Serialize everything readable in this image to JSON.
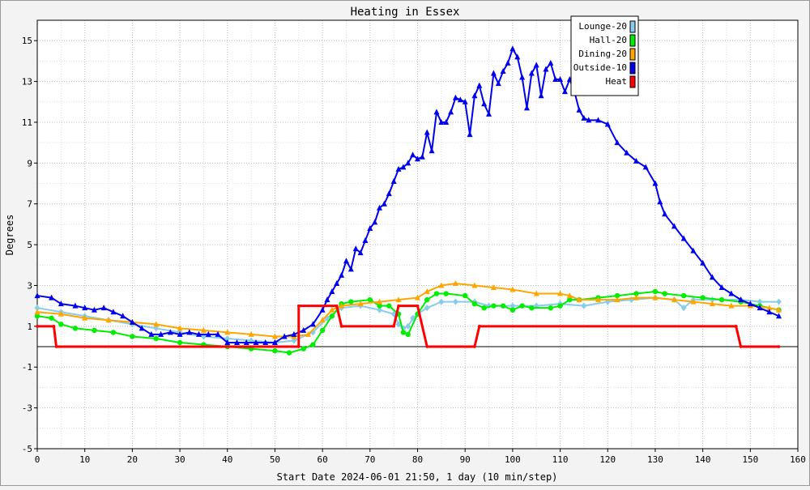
{
  "chart_data": {
    "type": "line",
    "title": "Heating in Essex",
    "xlabel": "Start Date 2024-06-01 21:50, 1 day (10 min/step)",
    "ylabel": "Degrees",
    "xlim": [
      0,
      160
    ],
    "ylim": [
      -5,
      16
    ],
    "x_ticks": [
      0,
      10,
      20,
      30,
      40,
      50,
      60,
      70,
      80,
      90,
      100,
      110,
      120,
      130,
      140,
      150,
      160
    ],
    "y_ticks": [
      -5,
      -3,
      -1,
      1,
      3,
      5,
      7,
      9,
      11,
      13,
      15
    ],
    "grid": true,
    "legend_position": "top-right",
    "series": [
      {
        "name": "Lounge-20",
        "color": "#87cdea",
        "marker": "diamond",
        "points": [
          [
            0,
            1.9
          ],
          [
            5,
            1.7
          ],
          [
            10,
            1.5
          ],
          [
            15,
            1.3
          ],
          [
            20,
            1.1
          ],
          [
            25,
            0.9
          ],
          [
            30,
            0.7
          ],
          [
            35,
            0.5
          ],
          [
            40,
            0.4
          ],
          [
            45,
            0.3
          ],
          [
            50,
            0.2
          ],
          [
            54,
            0.3
          ],
          [
            58,
            0.7
          ],
          [
            61,
            1.4
          ],
          [
            64,
            1.9
          ],
          [
            68,
            2.0
          ],
          [
            72,
            1.8
          ],
          [
            75,
            1.6
          ],
          [
            76,
            1.1
          ],
          [
            77,
            0.9
          ],
          [
            78,
            1.0
          ],
          [
            79,
            1.4
          ],
          [
            80,
            1.6
          ],
          [
            82,
            1.9
          ],
          [
            85,
            2.2
          ],
          [
            88,
            2.2
          ],
          [
            92,
            2.2
          ],
          [
            95,
            2.0
          ],
          [
            100,
            2.0
          ],
          [
            105,
            2.0
          ],
          [
            110,
            2.1
          ],
          [
            115,
            2.0
          ],
          [
            120,
            2.2
          ],
          [
            125,
            2.3
          ],
          [
            130,
            2.4
          ],
          [
            134,
            2.3
          ],
          [
            136,
            1.9
          ],
          [
            138,
            2.3
          ],
          [
            142,
            2.3
          ],
          [
            148,
            2.3
          ],
          [
            152,
            2.2
          ],
          [
            156,
            2.2
          ]
        ]
      },
      {
        "name": "Hall-20",
        "color": "#00ee00",
        "marker": "circle",
        "points": [
          [
            0,
            1.5
          ],
          [
            3,
            1.4
          ],
          [
            5,
            1.1
          ],
          [
            8,
            0.9
          ],
          [
            12,
            0.8
          ],
          [
            16,
            0.7
          ],
          [
            20,
            0.5
          ],
          [
            25,
            0.4
          ],
          [
            30,
            0.2
          ],
          [
            35,
            0.1
          ],
          [
            40,
            0.0
          ],
          [
            45,
            -0.1
          ],
          [
            50,
            -0.2
          ],
          [
            53,
            -0.3
          ],
          [
            56,
            -0.1
          ],
          [
            58,
            0.1
          ],
          [
            60,
            0.8
          ],
          [
            62,
            1.5
          ],
          [
            64,
            2.1
          ],
          [
            66,
            2.2
          ],
          [
            70,
            2.3
          ],
          [
            72,
            2.0
          ],
          [
            74,
            2.0
          ],
          [
            76,
            1.6
          ],
          [
            77,
            0.7
          ],
          [
            78,
            0.6
          ],
          [
            80,
            1.6
          ],
          [
            82,
            2.3
          ],
          [
            84,
            2.6
          ],
          [
            86,
            2.6
          ],
          [
            90,
            2.5
          ],
          [
            92,
            2.1
          ],
          [
            94,
            1.9
          ],
          [
            96,
            2.0
          ],
          [
            98,
            2.0
          ],
          [
            100,
            1.8
          ],
          [
            102,
            2.0
          ],
          [
            104,
            1.9
          ],
          [
            108,
            1.9
          ],
          [
            110,
            2.0
          ],
          [
            112,
            2.3
          ],
          [
            114,
            2.3
          ],
          [
            118,
            2.4
          ],
          [
            122,
            2.5
          ],
          [
            126,
            2.6
          ],
          [
            130,
            2.7
          ],
          [
            132,
            2.6
          ],
          [
            136,
            2.5
          ],
          [
            140,
            2.4
          ],
          [
            144,
            2.3
          ],
          [
            148,
            2.2
          ],
          [
            152,
            2.0
          ],
          [
            156,
            1.8
          ]
        ]
      },
      {
        "name": "Dining-20",
        "color": "#ffa500",
        "marker": "triangle",
        "points": [
          [
            0,
            1.7
          ],
          [
            5,
            1.6
          ],
          [
            10,
            1.4
          ],
          [
            15,
            1.3
          ],
          [
            20,
            1.2
          ],
          [
            25,
            1.1
          ],
          [
            30,
            0.9
          ],
          [
            35,
            0.8
          ],
          [
            40,
            0.7
          ],
          [
            45,
            0.6
          ],
          [
            50,
            0.5
          ],
          [
            54,
            0.5
          ],
          [
            57,
            0.6
          ],
          [
            60,
            1.3
          ],
          [
            62,
            1.8
          ],
          [
            64,
            2.0
          ],
          [
            68,
            2.1
          ],
          [
            72,
            2.2
          ],
          [
            76,
            2.3
          ],
          [
            80,
            2.4
          ],
          [
            82,
            2.7
          ],
          [
            85,
            3.0
          ],
          [
            88,
            3.1
          ],
          [
            92,
            3.0
          ],
          [
            96,
            2.9
          ],
          [
            100,
            2.8
          ],
          [
            105,
            2.6
          ],
          [
            110,
            2.6
          ],
          [
            112,
            2.5
          ],
          [
            114,
            2.3
          ],
          [
            118,
            2.3
          ],
          [
            122,
            2.3
          ],
          [
            126,
            2.4
          ],
          [
            130,
            2.4
          ],
          [
            134,
            2.3
          ],
          [
            138,
            2.2
          ],
          [
            142,
            2.1
          ],
          [
            146,
            2.0
          ],
          [
            150,
            2.0
          ],
          [
            154,
            1.9
          ],
          [
            156,
            1.8
          ]
        ]
      },
      {
        "name": "Outside-10",
        "color": "#0000ee",
        "marker": "triangle",
        "points": [
          [
            0,
            2.5
          ],
          [
            3,
            2.4
          ],
          [
            5,
            2.1
          ],
          [
            8,
            2.0
          ],
          [
            10,
            1.9
          ],
          [
            12,
            1.8
          ],
          [
            14,
            1.9
          ],
          [
            16,
            1.7
          ],
          [
            18,
            1.5
          ],
          [
            20,
            1.2
          ],
          [
            22,
            0.9
          ],
          [
            24,
            0.6
          ],
          [
            26,
            0.6
          ],
          [
            28,
            0.7
          ],
          [
            30,
            0.6
          ],
          [
            32,
            0.7
          ],
          [
            34,
            0.6
          ],
          [
            36,
            0.6
          ],
          [
            38,
            0.6
          ],
          [
            40,
            0.2
          ],
          [
            42,
            0.2
          ],
          [
            44,
            0.2
          ],
          [
            46,
            0.2
          ],
          [
            48,
            0.2
          ],
          [
            50,
            0.2
          ],
          [
            52,
            0.5
          ],
          [
            54,
            0.6
          ],
          [
            56,
            0.8
          ],
          [
            58,
            1.1
          ],
          [
            60,
            1.8
          ],
          [
            61,
            2.3
          ],
          [
            62,
            2.7
          ],
          [
            63,
            3.1
          ],
          [
            64,
            3.5
          ],
          [
            65,
            4.2
          ],
          [
            66,
            3.8
          ],
          [
            67,
            4.8
          ],
          [
            68,
            4.6
          ],
          [
            69,
            5.2
          ],
          [
            70,
            5.8
          ],
          [
            71,
            6.1
          ],
          [
            72,
            6.8
          ],
          [
            73,
            7.0
          ],
          [
            74,
            7.5
          ],
          [
            75,
            8.1
          ],
          [
            76,
            8.7
          ],
          [
            77,
            8.8
          ],
          [
            78,
            9.0
          ],
          [
            79,
            9.4
          ],
          [
            80,
            9.2
          ],
          [
            81,
            9.3
          ],
          [
            82,
            10.5
          ],
          [
            83,
            9.6
          ],
          [
            84,
            11.5
          ],
          [
            85,
            11.0
          ],
          [
            86,
            11.0
          ],
          [
            87,
            11.5
          ],
          [
            88,
            12.2
          ],
          [
            89,
            12.1
          ],
          [
            90,
            12.0
          ],
          [
            91,
            10.4
          ],
          [
            92,
            12.3
          ],
          [
            93,
            12.8
          ],
          [
            94,
            11.9
          ],
          [
            95,
            11.4
          ],
          [
            96,
            13.4
          ],
          [
            97,
            12.9
          ],
          [
            98,
            13.5
          ],
          [
            99,
            13.9
          ],
          [
            100,
            14.6
          ],
          [
            101,
            14.2
          ],
          [
            102,
            13.2
          ],
          [
            103,
            11.7
          ],
          [
            104,
            13.4
          ],
          [
            105,
            13.8
          ],
          [
            106,
            12.3
          ],
          [
            107,
            13.6
          ],
          [
            108,
            13.9
          ],
          [
            109,
            13.1
          ],
          [
            110,
            13.1
          ],
          [
            111,
            12.5
          ],
          [
            112,
            13.1
          ],
          [
            113,
            12.5
          ],
          [
            114,
            11.6
          ],
          [
            115,
            11.2
          ],
          [
            116,
            11.1
          ],
          [
            118,
            11.1
          ],
          [
            120,
            10.9
          ],
          [
            122,
            10.0
          ],
          [
            124,
            9.5
          ],
          [
            126,
            9.1
          ],
          [
            128,
            8.8
          ],
          [
            130,
            8.0
          ],
          [
            131,
            7.1
          ],
          [
            132,
            6.5
          ],
          [
            134,
            5.9
          ],
          [
            136,
            5.3
          ],
          [
            138,
            4.7
          ],
          [
            140,
            4.1
          ],
          [
            142,
            3.4
          ],
          [
            144,
            2.9
          ],
          [
            146,
            2.6
          ],
          [
            148,
            2.3
          ],
          [
            150,
            2.1
          ],
          [
            152,
            1.9
          ],
          [
            154,
            1.7
          ],
          [
            156,
            1.5
          ]
        ]
      },
      {
        "name": "Heat",
        "color": "#ff0000",
        "marker": "none",
        "points": [
          [
            0,
            1.0
          ],
          [
            3.5,
            1.0
          ],
          [
            4,
            0.0
          ],
          [
            55,
            0.0
          ],
          [
            55,
            2.0
          ],
          [
            63,
            2.0
          ],
          [
            64,
            1.0
          ],
          [
            75,
            1.0
          ],
          [
            76,
            2.0
          ],
          [
            80,
            2.0
          ],
          [
            82,
            0.0
          ],
          [
            92,
            0.0
          ],
          [
            93,
            1.0
          ],
          [
            147,
            1.0
          ],
          [
            148,
            0.0
          ],
          [
            156,
            0.0
          ]
        ]
      }
    ]
  }
}
